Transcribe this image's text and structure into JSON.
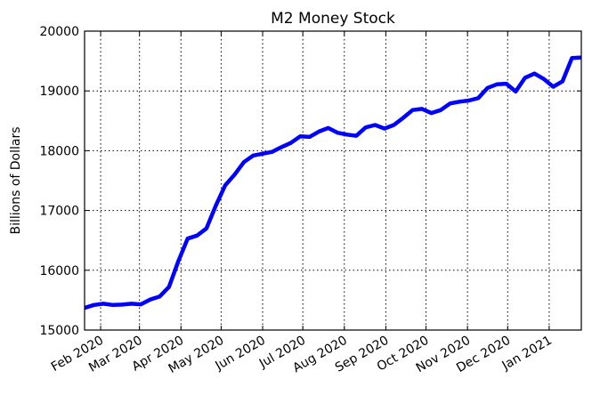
{
  "chart_data": {
    "type": "line",
    "title": "M2 Money Stock",
    "xlabel": "",
    "ylabel": "Billions of Dollars",
    "ylim": [
      15000,
      20000
    ],
    "xlim": [
      "2020-01-20",
      "2021-01-25"
    ],
    "grid": true,
    "legend": "none",
    "yticks": [
      15000,
      16000,
      17000,
      18000,
      19000,
      20000
    ],
    "xticks": [
      {
        "date": "2020-02-01",
        "label": "Feb 2020"
      },
      {
        "date": "2020-03-01",
        "label": "Mar 2020"
      },
      {
        "date": "2020-04-01",
        "label": "Apr 2020"
      },
      {
        "date": "2020-05-01",
        "label": "May 2020"
      },
      {
        "date": "2020-06-01",
        "label": "Jun 2020"
      },
      {
        "date": "2020-07-01",
        "label": "Jul 2020"
      },
      {
        "date": "2020-08-01",
        "label": "Aug 2020"
      },
      {
        "date": "2020-09-01",
        "label": "Sep 2020"
      },
      {
        "date": "2020-10-01",
        "label": "Oct 2020"
      },
      {
        "date": "2020-11-01",
        "label": "Nov 2020"
      },
      {
        "date": "2020-12-01",
        "label": "Dec 2020"
      },
      {
        "date": "2021-01-01",
        "label": "Jan 2021"
      }
    ],
    "series": [
      {
        "color": "#0000ff",
        "x": [
          "2020-01-20",
          "2020-01-27",
          "2020-02-03",
          "2020-02-10",
          "2020-02-17",
          "2020-02-24",
          "2020-03-02",
          "2020-03-09",
          "2020-03-16",
          "2020-03-23",
          "2020-03-30",
          "2020-04-06",
          "2020-04-13",
          "2020-04-20",
          "2020-04-27",
          "2020-05-04",
          "2020-05-11",
          "2020-05-18",
          "2020-05-25",
          "2020-06-01",
          "2020-06-08",
          "2020-06-15",
          "2020-06-22",
          "2020-06-29",
          "2020-07-06",
          "2020-07-13",
          "2020-07-20",
          "2020-07-27",
          "2020-08-03",
          "2020-08-10",
          "2020-08-17",
          "2020-08-24",
          "2020-08-31",
          "2020-09-07",
          "2020-09-14",
          "2020-09-21",
          "2020-09-28",
          "2020-10-05",
          "2020-10-12",
          "2020-10-19",
          "2020-10-26",
          "2020-11-02",
          "2020-11-09",
          "2020-11-16",
          "2020-11-23",
          "2020-11-30",
          "2020-12-07",
          "2020-12-14",
          "2020-12-21",
          "2020-12-28",
          "2021-01-04",
          "2021-01-11",
          "2021-01-18",
          "2021-01-25"
        ],
        "values": [
          15370,
          15420,
          15440,
          15420,
          15425,
          15440,
          15430,
          15510,
          15560,
          15720,
          16150,
          16530,
          16580,
          16700,
          17080,
          17420,
          17600,
          17810,
          17920,
          17950,
          17980,
          18060,
          18130,
          18240,
          18230,
          18320,
          18380,
          18300,
          18270,
          18250,
          18390,
          18430,
          18370,
          18430,
          18550,
          18680,
          18700,
          18630,
          18680,
          18790,
          18820,
          18840,
          18880,
          19050,
          19110,
          19120,
          18990,
          19220,
          19290,
          19200,
          19070,
          19160,
          19550,
          19560
        ]
      }
    ]
  }
}
